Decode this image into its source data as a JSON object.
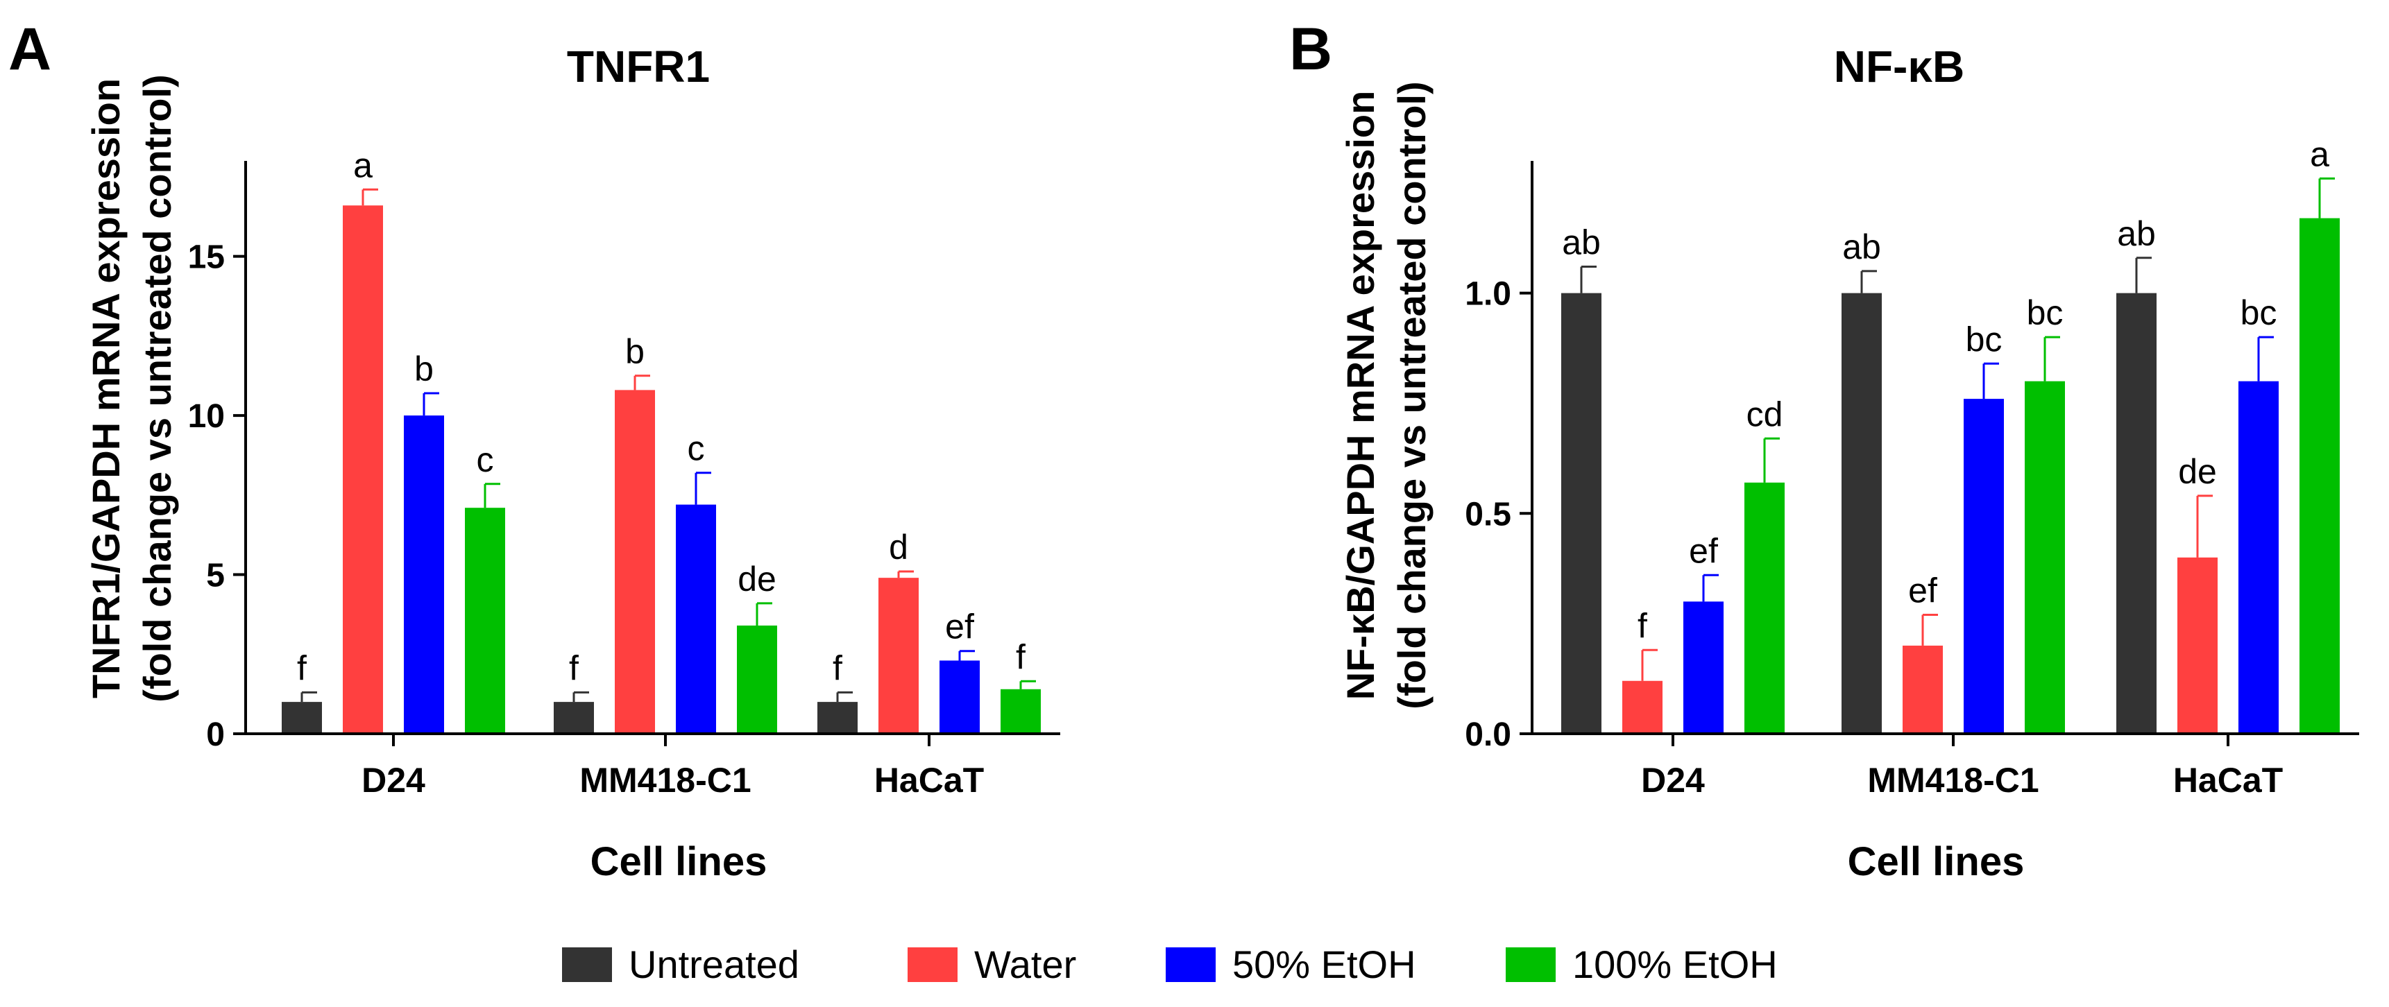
{
  "colors": {
    "Untreated": "#333333",
    "Water": "#ff4040",
    "50% EtOH": "#0000ff",
    "100% EtOH": "#00bf00"
  },
  "legend": [
    "Untreated",
    "Water",
    "50% EtOH",
    "100% EtOH"
  ],
  "chart_data": [
    {
      "panel": "A",
      "type": "bar",
      "title": "TNFR1",
      "ylabel": [
        "TNFR1/GAPDH mRNA expression",
        "(fold change vs untreated control)"
      ],
      "xlabel": "Cell lines",
      "categories": [
        "D24",
        "MM418-C1",
        "HaCaT"
      ],
      "ylim": [
        0,
        18
      ],
      "yticks": [
        0,
        5,
        10,
        15
      ],
      "ytick_labels": [
        "0",
        "5",
        "10",
        "15"
      ],
      "series": [
        {
          "name": "Untreated",
          "values": [
            1.0,
            1.0,
            1.0
          ],
          "errors": [
            0.3,
            0.3,
            0.3
          ],
          "letters": [
            "f",
            "f",
            "f"
          ]
        },
        {
          "name": "Water",
          "values": [
            16.6,
            10.8,
            4.9
          ],
          "errors": [
            0.5,
            0.45,
            0.2
          ],
          "letters": [
            "a",
            "b",
            "d"
          ]
        },
        {
          "name": "50% EtOH",
          "values": [
            10.0,
            7.2,
            2.3
          ],
          "errors": [
            0.7,
            1.0,
            0.3
          ],
          "letters": [
            "b",
            "c",
            "ef"
          ]
        },
        {
          "name": "100% EtOH",
          "values": [
            7.1,
            3.4,
            1.4
          ],
          "errors": [
            0.75,
            0.7,
            0.25
          ],
          "letters": [
            "c",
            "de",
            "f"
          ]
        }
      ]
    },
    {
      "panel": "B",
      "type": "bar",
      "title": "NF-κB",
      "ylabel": [
        "NF-κB/GAPDH mRNA expression",
        "(fold change vs untreated control)"
      ],
      "xlabel": "Cell lines",
      "categories": [
        "D24",
        "MM418-C1",
        "HaCaT"
      ],
      "ylim": [
        0,
        1.3
      ],
      "yticks": [
        0,
        0.5,
        1.0
      ],
      "ytick_labels": [
        "0.0",
        "0.5",
        "1.0"
      ],
      "series": [
        {
          "name": "Untreated",
          "values": [
            1.0,
            1.0,
            1.0
          ],
          "errors": [
            0.06,
            0.05,
            0.08
          ],
          "letters": [
            "ab",
            "ab",
            "ab"
          ]
        },
        {
          "name": "Water",
          "values": [
            0.12,
            0.2,
            0.4
          ],
          "errors": [
            0.07,
            0.07,
            0.14
          ],
          "letters": [
            "f",
            "ef",
            "de"
          ]
        },
        {
          "name": "50% EtOH",
          "values": [
            0.3,
            0.76,
            0.8
          ],
          "errors": [
            0.06,
            0.08,
            0.1
          ],
          "letters": [
            "ef",
            "bc",
            "bc"
          ]
        },
        {
          "name": "100% EtOH",
          "values": [
            0.57,
            0.8,
            1.17
          ],
          "errors": [
            0.1,
            0.1,
            0.09
          ],
          "letters": [
            "cd",
            "bc",
            "a"
          ]
        }
      ]
    }
  ]
}
